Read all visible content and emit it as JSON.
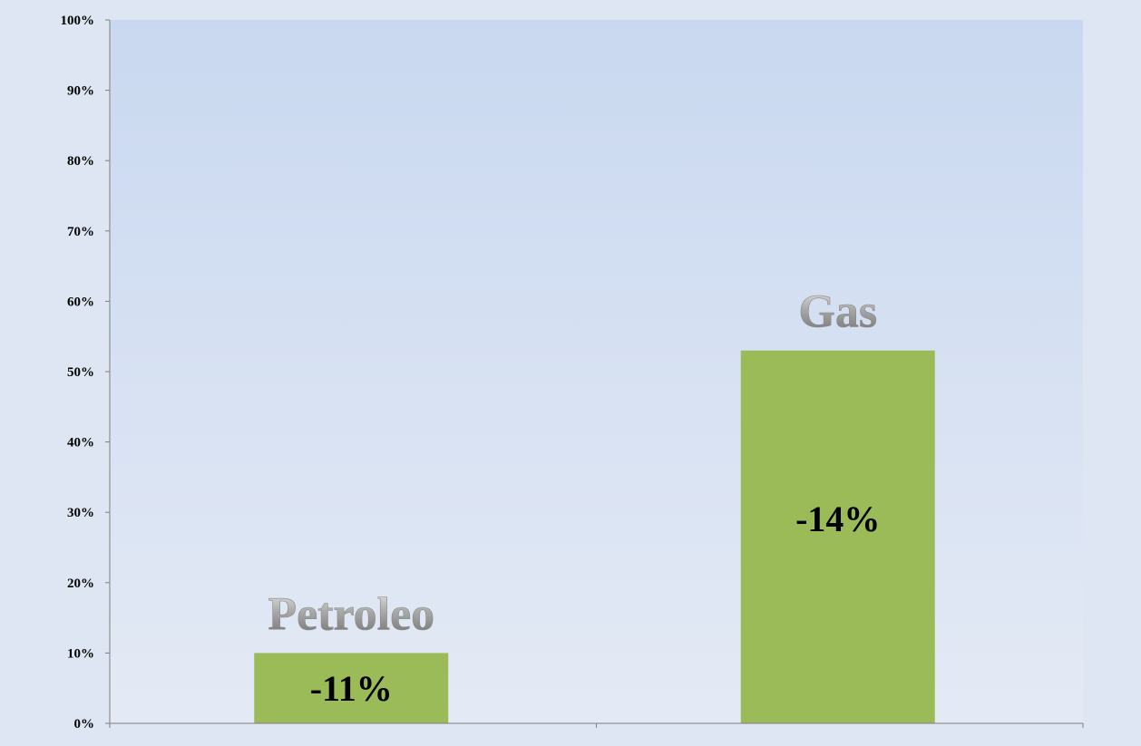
{
  "chart_data": {
    "type": "bar",
    "categories": [
      "Petroleo",
      "Gas"
    ],
    "values": [
      10,
      53
    ],
    "data_labels": [
      "-11%",
      "-14%"
    ],
    "ylim": [
      0,
      100
    ],
    "yticks": [
      0,
      10,
      20,
      30,
      40,
      50,
      60,
      70,
      80,
      90,
      100
    ],
    "ytick_labels": [
      "0%",
      "10%",
      "20%",
      "30%",
      "40%",
      "50%",
      "60%",
      "70%",
      "80%",
      "90%",
      "100%"
    ],
    "title": "",
    "xlabel": "",
    "ylabel": "",
    "legend": "none",
    "grid": false
  },
  "colors": {
    "bar": "#9bbb59",
    "plot_bg_top": "#c9d8f0",
    "plot_bg_bottom": "#e4eaf5",
    "page_bg": "#dde6f2",
    "axis": "#7f7f7f",
    "category_label_light": "#e8e8e8",
    "category_label_dark": "#6d6d6d"
  }
}
